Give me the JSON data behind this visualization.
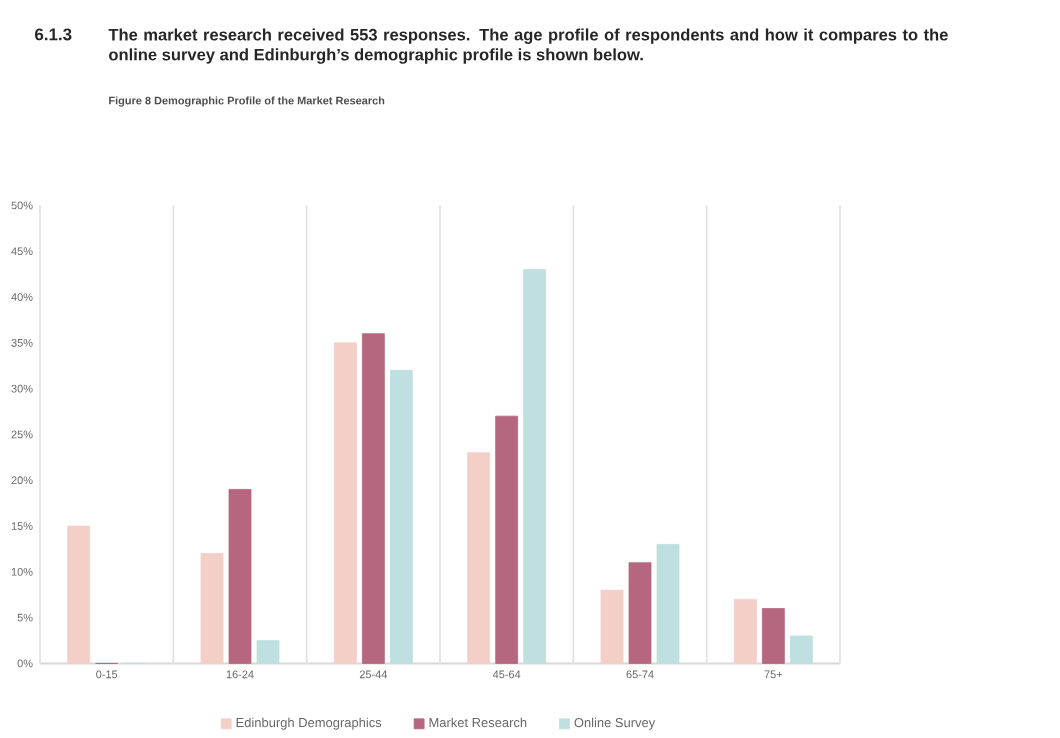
{
  "chart_data": {
    "type": "bar",
    "title": "Figure 8 Demographic Profile of the Market Research",
    "annotations": [
      "6.1.3",
      "The market research received 553 responses. The age profile of respondents and how it compares to the online survey and Edinburgh’s demographic profile is shown below."
    ],
    "categories": [
      "0-15",
      "16-24",
      "25-44",
      "45-64",
      "65-74",
      "75+"
    ],
    "series": [
      {
        "name": "Edinburgh Demographics",
        "color": "#f4cfc8",
        "values": [
          15,
          12,
          35,
          23,
          8,
          7
        ]
      },
      {
        "name": "Market Research",
        "color": "#b5677f",
        "values": [
          0,
          19,
          36,
          27,
          11,
          6
        ]
      },
      {
        "name": "Online Survey",
        "color": "#c0dfe0",
        "values": [
          0,
          2.5,
          32,
          43,
          13,
          3
        ]
      }
    ],
    "ylim": [
      0,
      50
    ],
    "yticks": [
      {
        "value": 0,
        "label": "0%"
      },
      {
        "value": 5,
        "label": "5%"
      },
      {
        "value": 10,
        "label": "10%"
      },
      {
        "value": 15,
        "label": "15%"
      },
      {
        "value": 20,
        "label": "20%"
      },
      {
        "value": 25,
        "label": "25%"
      },
      {
        "value": 30,
        "label": "30%"
      },
      {
        "value": 35,
        "label": "35%"
      },
      {
        "value": 40,
        "label": "40%"
      },
      {
        "value": 45,
        "label": "45%"
      },
      {
        "value": 50,
        "label": "50%"
      }
    ],
    "grid": "x",
    "legend": "bottom"
  }
}
